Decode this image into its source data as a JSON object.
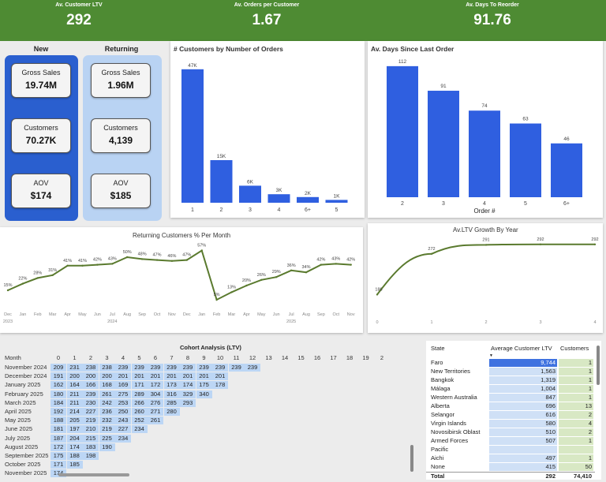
{
  "kpis": [
    {
      "label": "Av. Customer LTV",
      "value": "292"
    },
    {
      "label": "Av. Orders per Customer",
      "value": "1.67"
    },
    {
      "label": "Av. Days To Reorder",
      "value": "91.76"
    }
  ],
  "segments": {
    "new": {
      "title": "New",
      "gross_sales_label": "Gross Sales",
      "gross_sales": "19.74M",
      "customers_label": "Customers",
      "customers": "70.27K",
      "aov_label": "AOV",
      "aov": "$174"
    },
    "returning": {
      "title": "Returning",
      "gross_sales_label": "Gross Sales",
      "gross_sales": "1.96M",
      "customers_label": "Customers",
      "customers": "4,139",
      "aov_label": "AOV",
      "aov": "$185"
    }
  },
  "colors": {
    "kpi_bar": "#4e8b33",
    "bar": "#2f5fe0",
    "line": "#5a7a2e",
    "new_panel": "#2a5fcf",
    "returning_panel": "#b9d3f3"
  },
  "chart_data": [
    {
      "type": "bar",
      "title": "# Customers by Number of Orders",
      "categories": [
        "1",
        "2",
        "3",
        "4",
        "6+",
        "5"
      ],
      "values": [
        47000,
        15000,
        6000,
        3000,
        2000,
        1000
      ],
      "data_labels": [
        "47K",
        "15K",
        "6K",
        "3K",
        "2K",
        "1K"
      ],
      "ylim": [
        0,
        50000
      ]
    },
    {
      "type": "bar",
      "title": "Av. Days Since Last Order",
      "xlabel": "Order #",
      "categories": [
        "2",
        "3",
        "4",
        "5",
        "6+"
      ],
      "values": [
        112,
        91,
        74,
        63,
        46
      ],
      "data_labels": [
        "112",
        "91",
        "74",
        "63",
        "46"
      ],
      "ylim": [
        0,
        120
      ]
    },
    {
      "type": "line",
      "title": "Returning Customers % Per Month",
      "x": [
        "Dec",
        "Jan",
        "Feb",
        "Mar",
        "Apr",
        "May",
        "Jun",
        "Jul",
        "Aug",
        "Sep",
        "Oct",
        "Nov",
        "Dec",
        "Jan",
        "Feb",
        "Mar",
        "Apr",
        "May",
        "Jun",
        "Jul",
        "Aug",
        "Sep",
        "Oct",
        "Nov"
      ],
      "year_labels": [
        "2023",
        "2024",
        "2025"
      ],
      "values": [
        15,
        22,
        28,
        31,
        41,
        41,
        42,
        43,
        50,
        48,
        47,
        46,
        47,
        57,
        5,
        13,
        20,
        26,
        29,
        36,
        34,
        42,
        43,
        42
      ],
      "data_labels": [
        "15%",
        "22%",
        "28%",
        "31%",
        "41%",
        "41%",
        "42%",
        "43%",
        "50%",
        "48%",
        "47%",
        "46%",
        "47%",
        "57%",
        "5%",
        "13%",
        "20%",
        "26%",
        "29%",
        "36%",
        "34%",
        "42%",
        "43%",
        "42%"
      ],
      "ylim": [
        0,
        60
      ]
    },
    {
      "type": "line",
      "title": "Av.LTV Growth By Year",
      "x": [
        0,
        1,
        2,
        3,
        4
      ],
      "x_ticks": [
        "0",
        "1",
        "2",
        "3",
        "4"
      ],
      "points": [
        {
          "x": 0,
          "y": 186
        },
        {
          "x": 1,
          "y": 272
        },
        {
          "x": 2,
          "y": 291
        },
        {
          "x": 3,
          "y": 292
        },
        {
          "x": 4,
          "y": 292
        }
      ],
      "data_labels": [
        "186",
        "272",
        "291",
        "292",
        "292"
      ],
      "ylim": [
        150,
        300
      ]
    }
  ],
  "cohort": {
    "title": "Cohort Analysis (LTV)",
    "month_header": "Month",
    "columns": [
      "0",
      "1",
      "2",
      "3",
      "4",
      "5",
      "6",
      "7",
      "8",
      "9",
      "10",
      "11",
      "12",
      "13",
      "14",
      "15",
      "16",
      "17",
      "18",
      "19",
      "2"
    ],
    "rows": [
      {
        "month": "November 2024",
        "values": [
          "209",
          "231",
          "238",
          "238",
          "239",
          "239",
          "239",
          "239",
          "239",
          "239",
          "239",
          "239",
          "239"
        ]
      },
      {
        "month": "December 2024",
        "values": [
          "191",
          "200",
          "200",
          "200",
          "201",
          "201",
          "201",
          "201",
          "201",
          "201",
          "201"
        ]
      },
      {
        "month": "January 2025",
        "values": [
          "162",
          "164",
          "166",
          "168",
          "169",
          "171",
          "172",
          "173",
          "174",
          "175",
          "178"
        ]
      },
      {
        "month": "February 2025",
        "values": [
          "180",
          "211",
          "239",
          "261",
          "275",
          "289",
          "304",
          "316",
          "329",
          "340"
        ]
      },
      {
        "month": "March 2025",
        "values": [
          "184",
          "211",
          "230",
          "242",
          "253",
          "266",
          "276",
          "285",
          "293"
        ]
      },
      {
        "month": "April 2025",
        "values": [
          "192",
          "214",
          "227",
          "236",
          "250",
          "260",
          "271",
          "280"
        ]
      },
      {
        "month": "May 2025",
        "values": [
          "188",
          "205",
          "219",
          "232",
          "243",
          "252",
          "261"
        ]
      },
      {
        "month": "June 2025",
        "values": [
          "181",
          "197",
          "210",
          "219",
          "227",
          "234"
        ]
      },
      {
        "month": "July 2025",
        "values": [
          "187",
          "204",
          "215",
          "225",
          "234"
        ]
      },
      {
        "month": "August 2025",
        "values": [
          "172",
          "174",
          "183",
          "190"
        ]
      },
      {
        "month": "September 2025",
        "values": [
          "175",
          "188",
          "198"
        ]
      },
      {
        "month": "October 2025",
        "values": [
          "171",
          "185"
        ]
      },
      {
        "month": "November 2025",
        "values": [
          "174"
        ]
      }
    ]
  },
  "state_table": {
    "headers": {
      "state": "State",
      "ltv": "Average Customer LTV",
      "customers": "Customers"
    },
    "rows": [
      {
        "state": "Faro",
        "ltv": "9,744",
        "customers": "1",
        "ltv_fraction": 1.0
      },
      {
        "state": "New Territories",
        "ltv": "1,563",
        "customers": "1",
        "ltv_fraction": 0.16
      },
      {
        "state": "Bangkok",
        "ltv": "1,319",
        "customers": "1",
        "ltv_fraction": 0.135
      },
      {
        "state": "Málaga",
        "ltv": "1,004",
        "customers": "1",
        "ltv_fraction": 0.103
      },
      {
        "state": "Western Australia",
        "ltv": "847",
        "customers": "1",
        "ltv_fraction": 0.087
      },
      {
        "state": "Alberta",
        "ltv": "696",
        "customers": "13",
        "ltv_fraction": 0.071
      },
      {
        "state": "Selangor",
        "ltv": "616",
        "customers": "2",
        "ltv_fraction": 0.063
      },
      {
        "state": "Virgin Islands",
        "ltv": "580",
        "customers": "4",
        "ltv_fraction": 0.06
      },
      {
        "state": "Novosibirsk Oblast",
        "ltv": "510",
        "customers": "2",
        "ltv_fraction": 0.052
      },
      {
        "state": "Armed Forces",
        "ltv": "507",
        "customers": "1",
        "ltv_fraction": 0.052
      },
      {
        "state": "Pacific",
        "ltv": "",
        "customers": "",
        "ltv_fraction": 0
      },
      {
        "state": "Aichi",
        "ltv": "497",
        "customers": "1",
        "ltv_fraction": 0.051
      },
      {
        "state": "None",
        "ltv": "415",
        "customers": "50",
        "ltv_fraction": 0.043
      }
    ],
    "total": {
      "label": "Total",
      "ltv": "292",
      "customers": "74,410"
    }
  }
}
